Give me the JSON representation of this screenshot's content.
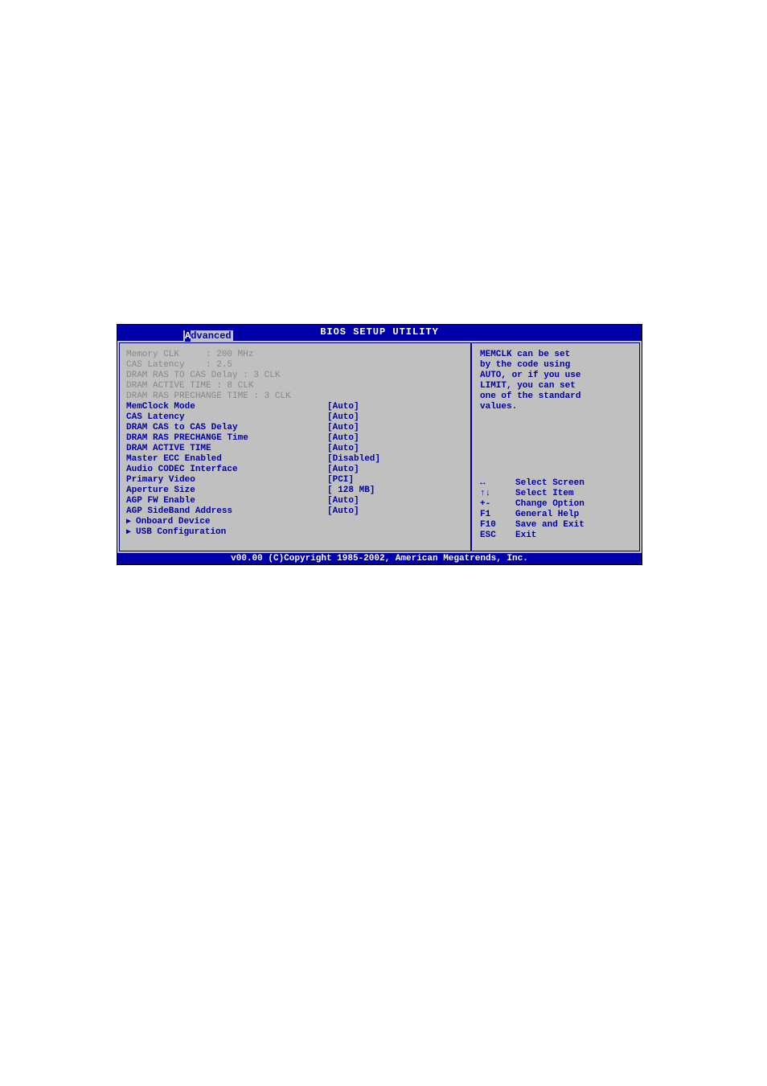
{
  "colors": {
    "header_bg": "#0000a8",
    "panel_bg": "#c0c0c0",
    "text_blue": "#0000a8",
    "text_white": "#ffffff",
    "text_gray": "#888888",
    "border": "#000080"
  },
  "title": "BIOS SETUP UTILITY",
  "tab": {
    "label": "Advanced",
    "selected_letter": "A"
  },
  "info_lines": [
    "Memory CLK     : 200 MHz",
    "CAS Latency    : 2.5",
    "DRAM RAS TO CAS Delay : 3 CLK",
    "DRAM ACTIVE TIME : 8 CLK",
    "DRAM RAS PRECHANGE TIME : 3 CLK"
  ],
  "settings": [
    {
      "label": "MemClock Mode",
      "value": "[Auto]"
    },
    {
      "label": "CAS Latency",
      "value": "[Auto]"
    },
    {
      "label": "DRAM CAS to CAS Delay",
      "value": "[Auto]"
    },
    {
      "label": "DRAM RAS PRECHANGE Time",
      "value": "[Auto]"
    },
    {
      "label": "DRAM ACTIVE TIME",
      "value": "[Auto]"
    },
    {
      "label": "Master ECC Enabled",
      "value": "[Disabled]"
    },
    {
      "label": "Audio CODEC Interface",
      "value": "[Auto]"
    },
    {
      "label": "Primary Video",
      "value": "[PCI]"
    },
    {
      "label": "Aperture Size",
      "value": "[ 128 MB]"
    },
    {
      "label": "AGP FW Enable",
      "value": "[Auto]"
    },
    {
      "label": "AGP SideBand Address",
      "value": "[Auto]"
    }
  ],
  "submenus": [
    {
      "label": "Onboard Device"
    },
    {
      "label": "USB Configuration"
    }
  ],
  "help_text": "MEMCLK can be set\nby the code using\nAUTO, or if you use\nLIMIT, you can set\none of the standard\nvalues.",
  "nav": [
    {
      "key": "↔",
      "desc": "Select Screen"
    },
    {
      "key": "↑↓",
      "desc": "Select Item"
    },
    {
      "key": "+-",
      "desc": "Change Option"
    },
    {
      "key": "F1",
      "desc": "General Help"
    },
    {
      "key": "F10",
      "desc": "Save and Exit"
    },
    {
      "key": "ESC",
      "desc": "Exit"
    }
  ],
  "footer": "v00.00 (C)Copyright 1985-2002, American Megatrends, Inc."
}
